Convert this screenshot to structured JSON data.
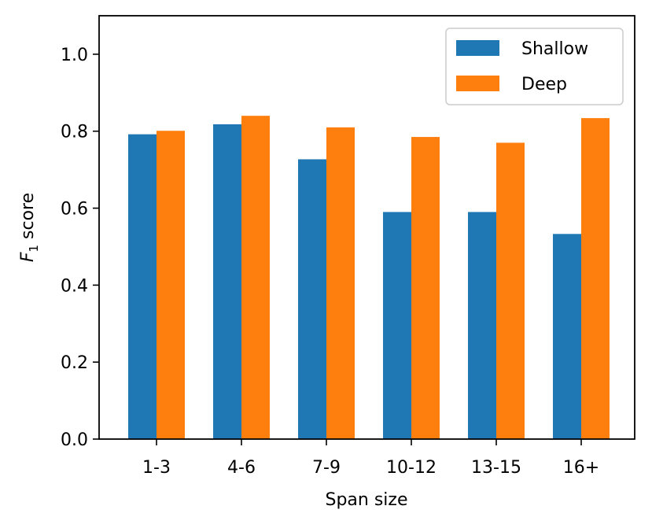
{
  "chart_data": {
    "type": "bar",
    "title": "",
    "xlabel": "Span size",
    "ylabel": {
      "prefix": "F",
      "subscript": "1",
      "suffix": " score"
    },
    "categories": [
      "1-3",
      "4-6",
      "7-9",
      "10-12",
      "13-15",
      "16+"
    ],
    "series": [
      {
        "name": "Shallow",
        "color": "#1f77b4",
        "values": [
          0.792,
          0.818,
          0.727,
          0.59,
          0.59,
          0.533
        ]
      },
      {
        "name": "Deep",
        "color": "#ff7f0e",
        "values": [
          0.801,
          0.84,
          0.81,
          0.785,
          0.77,
          0.834
        ]
      }
    ],
    "ylim": [
      0,
      1.1
    ],
    "yticks": [
      0.0,
      0.2,
      0.4,
      0.6,
      0.8,
      1.0
    ],
    "ytick_labels": [
      "0.0",
      "0.2",
      "0.4",
      "0.6",
      "0.8",
      "1.0"
    ],
    "grid": false,
    "legend_position": "top-right"
  }
}
